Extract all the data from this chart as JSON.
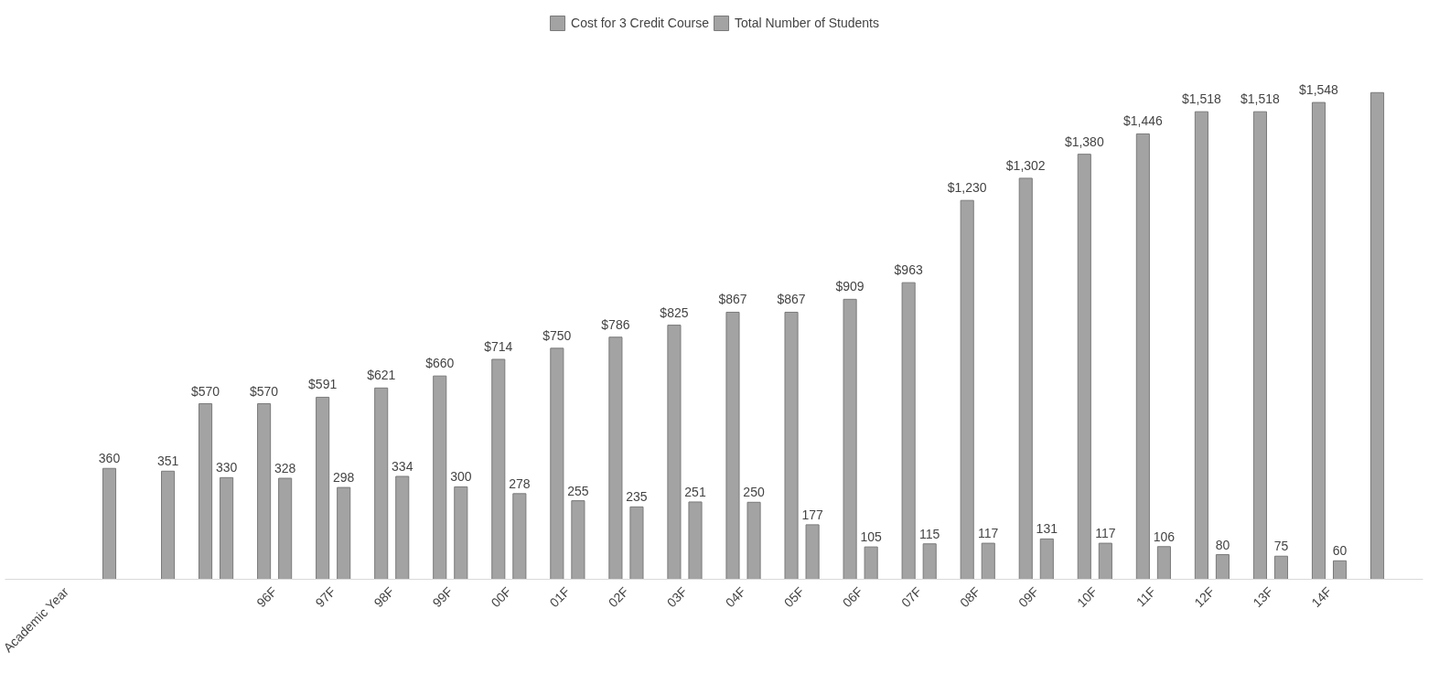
{
  "chart_data": {
    "type": "bar",
    "legend": "top",
    "grid": false,
    "categories": [
      "Academic Year",
      null,
      null,
      null,
      "96F",
      "97F",
      "98F",
      "99F",
      "00F",
      "01F",
      "02F",
      "03F",
      "04F",
      "05F",
      "06F",
      "07F",
      "08F",
      "09F",
      "10F",
      "11F",
      "12F",
      "13F",
      "14F",
      null
    ],
    "series": [
      {
        "name": "Cost for 3 Credit Course",
        "color": "#a3a3a3",
        "values": [
          null,
          null,
          null,
          570,
          570,
          591,
          621,
          660,
          714,
          750,
          786,
          825,
          867,
          867,
          909,
          963,
          1230,
          1302,
          1380,
          1446,
          1518,
          1518,
          1548,
          1580
        ],
        "value_labels": [
          null,
          null,
          null,
          "$570",
          "$570",
          "$591",
          "$621",
          "$660",
          "$714",
          "$750",
          "$786",
          "$825",
          "$867",
          "$867",
          "$909",
          "$963",
          "$1,230",
          "$1,302",
          "$1,380",
          "$1,446",
          "$1,518",
          "$1,518",
          "$1,548",
          null
        ]
      },
      {
        "name": "Total Number of Students",
        "color": "#a3a3a3",
        "values": [
          null,
          360,
          351,
          330,
          328,
          298,
          334,
          300,
          278,
          255,
          235,
          251,
          250,
          177,
          105,
          115,
          117,
          131,
          117,
          106,
          80,
          75,
          60,
          null
        ],
        "value_labels": [
          null,
          "360",
          "351",
          "330",
          "328",
          "298",
          "334",
          "300",
          "278",
          "255",
          "235",
          "251",
          "250",
          "177",
          "105",
          "115",
          "117",
          "131",
          "117",
          "106",
          "80",
          "75",
          "60",
          null
        ]
      }
    ]
  }
}
